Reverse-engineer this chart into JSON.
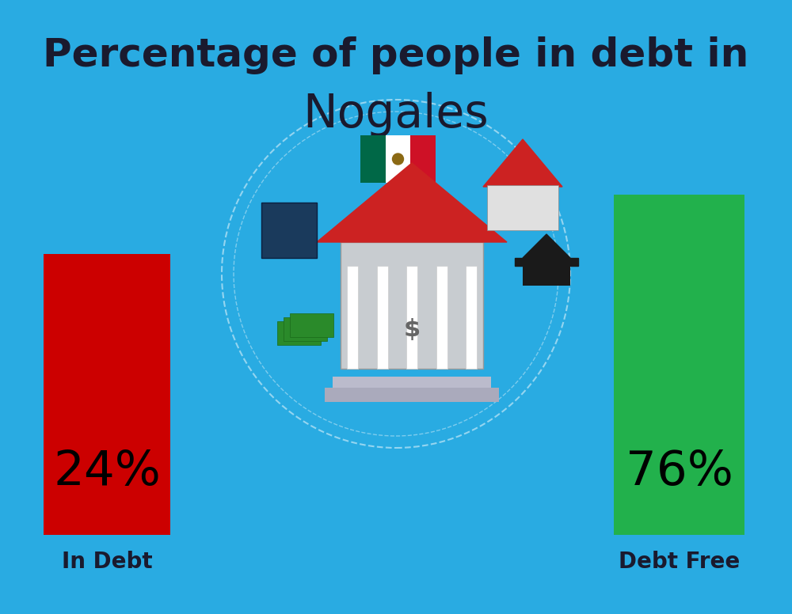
{
  "background_color": "#29ABE2",
  "title_line1": "Percentage of people in debt in",
  "title_line2": "Nogales",
  "title_color": "#1a1a2e",
  "title_fontsize": 36,
  "title2_fontsize": 42,
  "bar1_label": "In Debt",
  "bar1_color": "#CC0000",
  "bar1_text": "24%",
  "bar2_label": "Debt Free",
  "bar2_color": "#22B14C",
  "bar2_text": "76%",
  "label_color": "#1a1a2e",
  "label_fontsize": 20,
  "pct_fontsize": 44,
  "mexico_flag_green": "#006847",
  "mexico_flag_white": "#FFFFFF",
  "mexico_flag_red": "#CE1126"
}
